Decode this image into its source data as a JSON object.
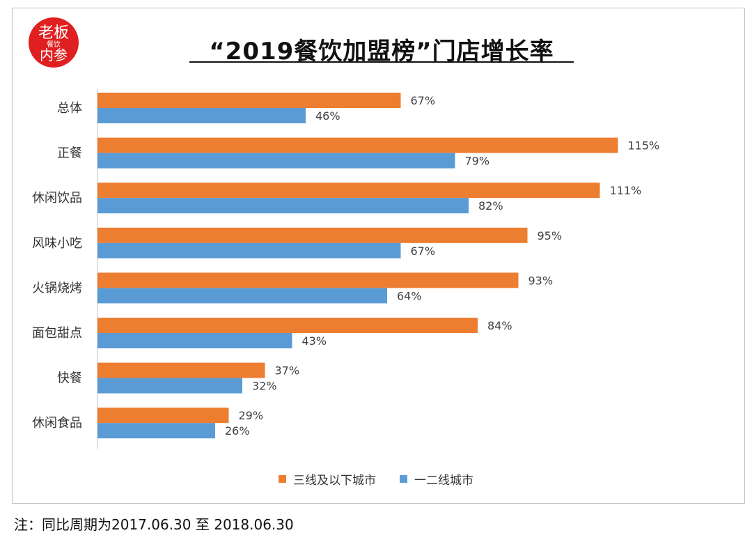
{
  "logo": {
    "lines": [
      "老板",
      "餐饮",
      "内参"
    ],
    "color": "#e02020"
  },
  "title": "“2019餐饮加盟榜”门店增长率",
  "note": "注：同比周期为2017.06.30 至 2018.06.30",
  "chart_data": {
    "type": "bar",
    "orientation": "horizontal",
    "title": "“2019餐饮加盟榜”门店增长率",
    "categories": [
      "总体",
      "正餐",
      "休闲饮品",
      "风味小吃",
      "火锅烧烤",
      "面包甜点",
      "快餐",
      "休闲食品"
    ],
    "series": [
      {
        "name": "三线及以下城市",
        "color": "#ed7d31",
        "values": [
          67,
          115,
          111,
          95,
          93,
          84,
          37,
          29
        ],
        "labels": [
          "67%",
          "115%",
          "111%",
          "95%",
          "93%",
          "84%",
          "37%",
          "29%"
        ]
      },
      {
        "name": "一二线城市",
        "color": "#5b9bd5",
        "values": [
          46,
          79,
          82,
          67,
          64,
          43,
          32,
          26
        ],
        "labels": [
          "46%",
          "79%",
          "82%",
          "67%",
          "64%",
          "43%",
          "32%",
          "26%"
        ]
      }
    ],
    "xlim": [
      0,
      120
    ],
    "grid": false,
    "legend_position": "bottom"
  }
}
